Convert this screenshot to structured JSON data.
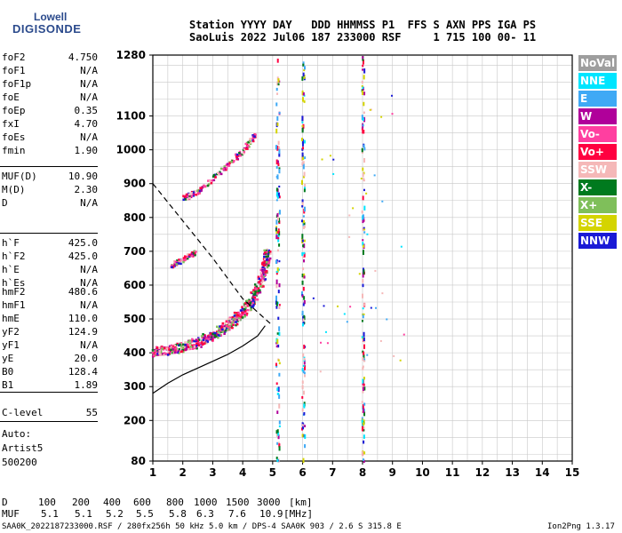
{
  "logo": {
    "line1": "Lowell",
    "line2": "DIGISONDE"
  },
  "header": {
    "row1": "Station YYYY DAY   DDD HHMMSS P1  FFS S AXN PPS IGA PS",
    "row2": "SaoLuis 2022 Jul06 187 233000 RSF     1 715 100 00- 11"
  },
  "params_group1": [
    {
      "name": "foF2",
      "value": "4.750"
    },
    {
      "name": "foF1",
      "value": "N/A"
    },
    {
      "name": "foF1p",
      "value": "N/A"
    },
    {
      "name": "foE",
      "value": "N/A"
    },
    {
      "name": "foEp",
      "value": "0.35"
    },
    {
      "name": "fxI",
      "value": "4.70"
    },
    {
      "name": "foEs",
      "value": "N/A"
    },
    {
      "name": "fmin",
      "value": "1.90"
    }
  ],
  "params_group2": [
    {
      "name": "MUF(D)",
      "value": "10.90"
    },
    {
      "name": "M(D)",
      "value": "2.30"
    },
    {
      "name": "D",
      "value": "N/A"
    }
  ],
  "params_group3": [
    {
      "name": "h`F",
      "value": "425.0"
    },
    {
      "name": "h`F2",
      "value": "425.0"
    },
    {
      "name": "h`E",
      "value": "N/A"
    },
    {
      "name": "h`Es",
      "value": "N/A"
    }
  ],
  "params_group4": [
    {
      "name": "hmF2",
      "value": "480.6"
    },
    {
      "name": "hmF1",
      "value": "N/A"
    },
    {
      "name": "hmE",
      "value": "110.0"
    },
    {
      "name": "yF2",
      "value": "124.9"
    },
    {
      "name": "yF1",
      "value": "N/A"
    },
    {
      "name": "yE",
      "value": "20.0"
    },
    {
      "name": "B0",
      "value": "128.4"
    },
    {
      "name": "B1",
      "value": "1.89"
    }
  ],
  "clevel": {
    "name": "C-level",
    "value": "55"
  },
  "auto": {
    "line1": "Auto:",
    "line2": "Artist5",
    "line3": "500200"
  },
  "legend": [
    {
      "label": "NoVal",
      "color": "#9e9e9e"
    },
    {
      "label": "NNE",
      "color": "#00e5ff"
    },
    {
      "label": "E",
      "color": "#3fa9f5"
    },
    {
      "label": "W",
      "color": "#b0009a"
    },
    {
      "label": "Vo-",
      "color": "#ff3fa0"
    },
    {
      "label": "Vo+",
      "color": "#ff0040"
    },
    {
      "label": "SSW",
      "color": "#f5b8b8"
    },
    {
      "label": "X-",
      "color": "#007a1e"
    },
    {
      "label": "X+",
      "color": "#7fbf5a"
    },
    {
      "label": "SSE",
      "color": "#d4d400"
    },
    {
      "label": "NNW",
      "color": "#1a1ad6"
    }
  ],
  "muf_table": {
    "d_label": "D",
    "d_values": [
      "100",
      "200",
      "400",
      "600",
      "800",
      "1000",
      "1500",
      "3000"
    ],
    "d_unit": "[km]",
    "muf_label": "MUF",
    "muf_values": [
      "5.1",
      "5.1",
      "5.2",
      "5.5",
      "5.8",
      "6.3",
      "7.6",
      "10.9"
    ],
    "muf_unit": "[MHz]"
  },
  "footer": {
    "left": "SAA0K_2022187233000.RSF / 280fx256h 50 kHz 5.0 km / DPS-4 SAA0K 903 / 2.6 S 315.8 E",
    "right": "Ion2Png 1.3.17"
  },
  "chart_data": {
    "type": "scatter",
    "xlim": [
      1,
      15
    ],
    "ylim": [
      80,
      1280
    ],
    "x_ticks": [
      1,
      2,
      3,
      4,
      5,
      6,
      7,
      8,
      9,
      10,
      11,
      12,
      13,
      14,
      15
    ],
    "y_ticks": [
      80,
      200,
      300,
      400,
      500,
      600,
      700,
      800,
      900,
      1000,
      1100,
      1280
    ],
    "grid": true,
    "legend_placement": "right",
    "traces": [
      {
        "name": "F2 O-trace",
        "points": [
          [
            1.0,
            405
          ],
          [
            1.5,
            410
          ],
          [
            2.0,
            420
          ],
          [
            2.5,
            435
          ],
          [
            3.0,
            455
          ],
          [
            3.5,
            485
          ],
          [
            4.0,
            525
          ],
          [
            4.3,
            560
          ],
          [
            4.5,
            600
          ],
          [
            4.7,
            650
          ],
          [
            4.8,
            700
          ]
        ]
      },
      {
        "name": "F2 second hop",
        "points": [
          [
            2.0,
            860
          ],
          [
            2.5,
            880
          ],
          [
            3.0,
            920
          ],
          [
            3.5,
            960
          ],
          [
            4.0,
            1000
          ],
          [
            4.4,
            1050
          ]
        ]
      },
      {
        "name": "F2 X-trace",
        "points": [
          [
            1.6,
            660
          ],
          [
            2.0,
            680
          ],
          [
            2.4,
            700
          ]
        ]
      }
    ],
    "profile": [
      [
        1.0,
        280
      ],
      [
        1.5,
        310
      ],
      [
        2.0,
        335
      ],
      [
        2.5,
        355
      ],
      [
        3.0,
        375
      ],
      [
        3.5,
        395
      ],
      [
        4.0,
        420
      ],
      [
        4.5,
        450
      ],
      [
        4.75,
        480
      ]
    ],
    "muf_curve": [
      [
        1.0,
        900
      ],
      [
        2.0,
        790
      ],
      [
        3.0,
        680
      ],
      [
        4.0,
        560
      ],
      [
        4.5,
        520
      ],
      [
        5.0,
        480
      ]
    ]
  }
}
